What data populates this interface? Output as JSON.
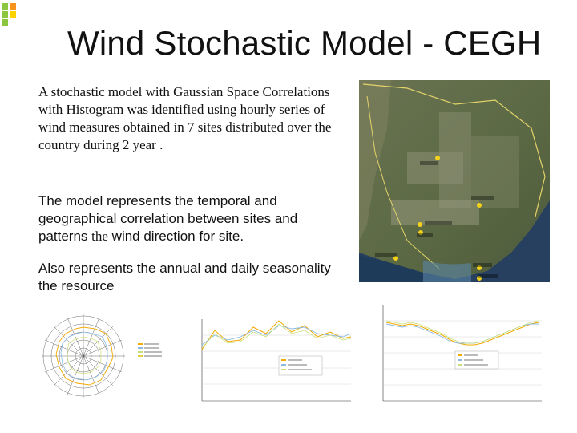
{
  "slide": {
    "title": "Wind Stochastic Model - CEGH",
    "paragraph1": "A stochastic model with Gaussian Space Correlations with Histogram was identified using hourly series of wind measures obtained in 7 sites distributed over the country during 2 year .",
    "paragraph2_a": "The model represents the temporal and geographical correlation between sites and patterns ",
    "paragraph2_b": "the",
    "paragraph2_c": " wind direction for site.",
    "paragraph3": "Also represents the annual and daily seasonality the resource"
  },
  "logo": {
    "colors": [
      "#8cc63f",
      "#f7941d",
      "#8cc63f",
      "#ffd200"
    ],
    "icon": "squares-logo-icon"
  },
  "map": {
    "icon": "satellite-map-image",
    "site_labels": [
      "",
      "",
      "",
      "",
      "",
      "",
      ""
    ]
  },
  "charts": {
    "radar": {
      "icon": "wind-rose-radar-chart"
    },
    "monthly": {
      "icon": "monthly-line-chart"
    },
    "daily": {
      "icon": "daily-line-chart"
    }
  }
}
